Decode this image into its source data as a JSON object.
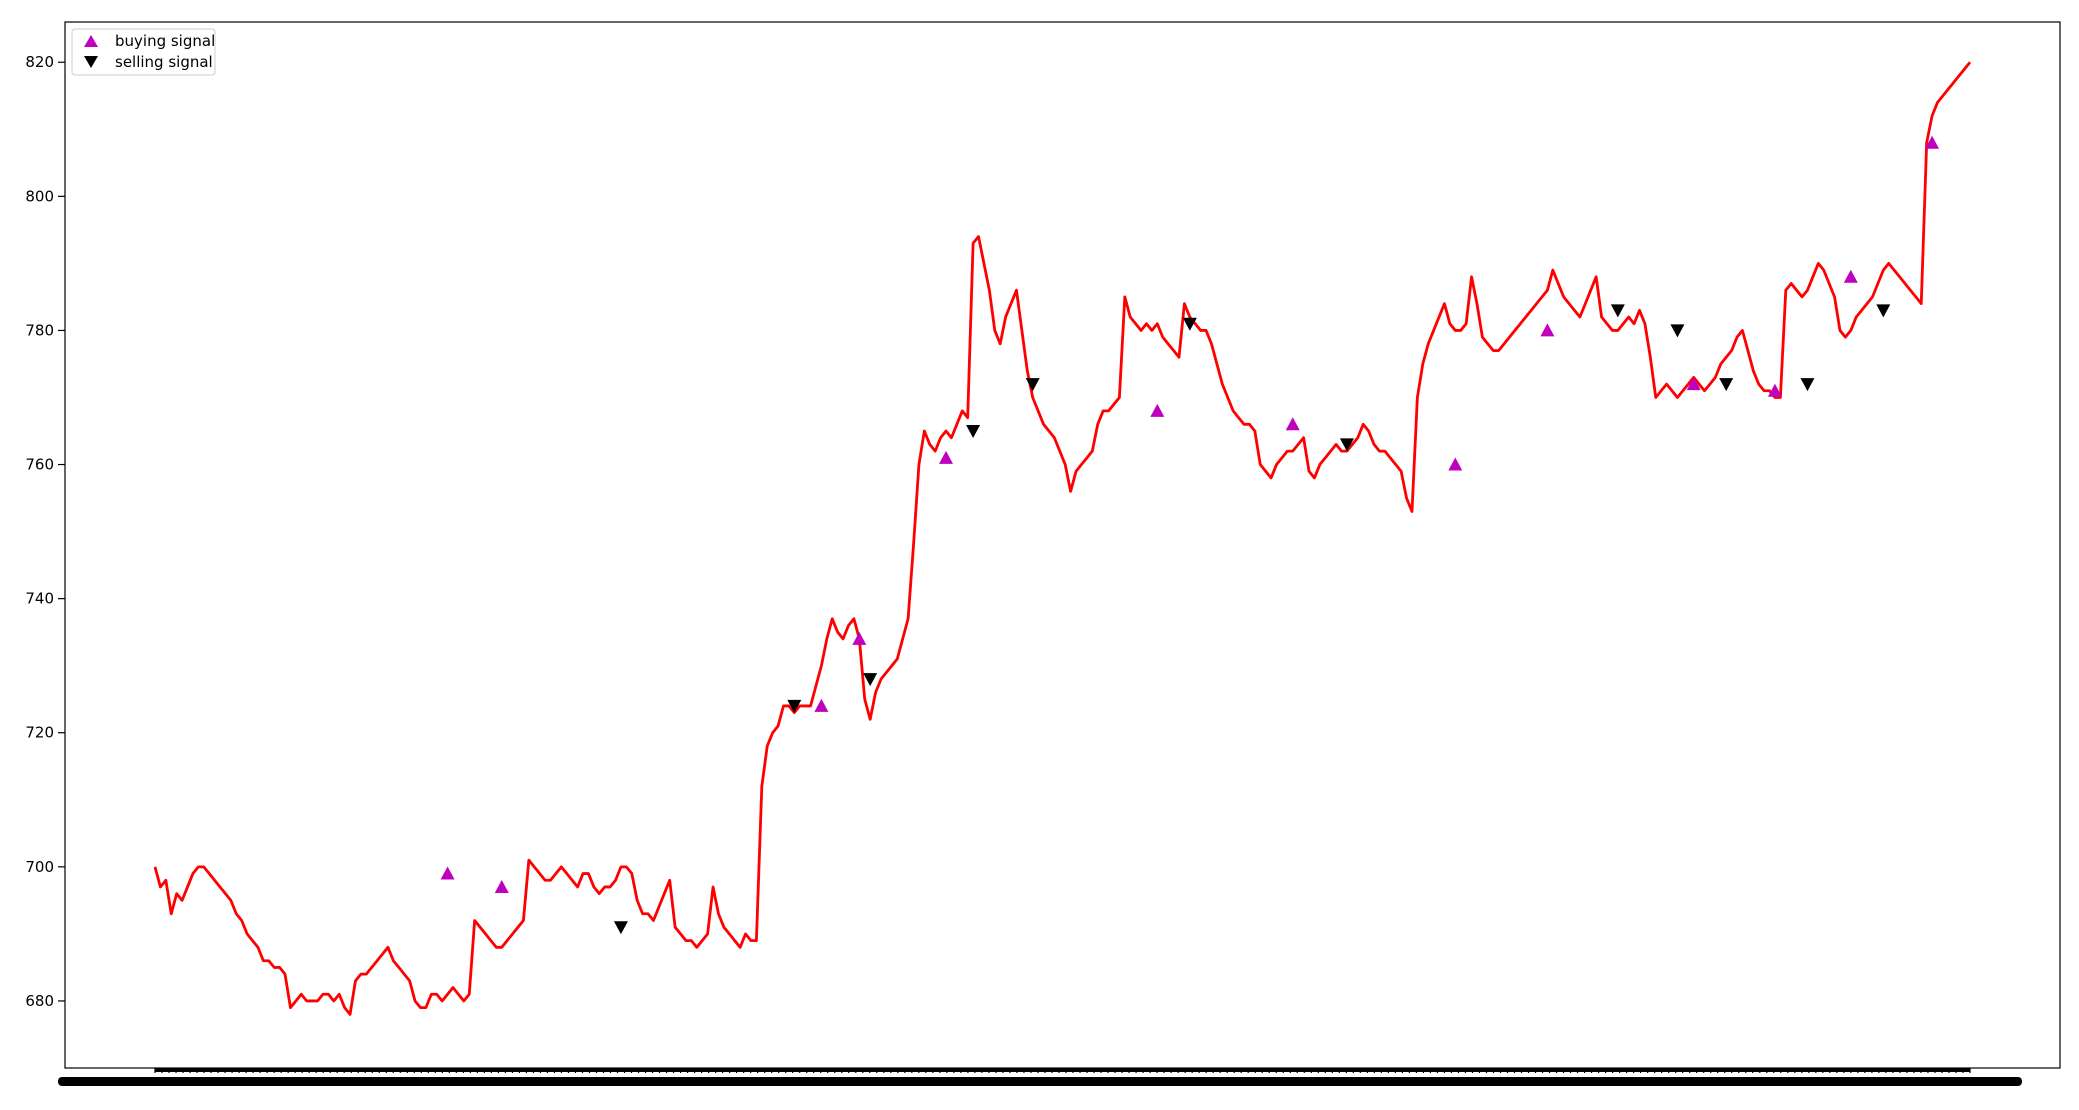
{
  "chart_data": {
    "type": "line",
    "title": "",
    "xlabel": "",
    "ylabel": "",
    "ylim": [
      670,
      826
    ],
    "y_ticks": [
      680,
      700,
      720,
      740,
      760,
      780,
      800,
      820
    ],
    "x_tick_labels_overlapping": true,
    "grid": false,
    "legend_position": "top-left",
    "colors": {
      "price": "#ff0000",
      "buy": "#bf00bf",
      "sell": "#000000"
    },
    "series": [
      {
        "type": "line",
        "values": [
          700,
          697,
          698,
          693,
          696,
          695,
          697,
          699,
          700,
          700,
          699,
          698,
          697,
          696,
          695,
          693,
          692,
          690,
          689,
          688,
          686,
          686,
          685,
          685,
          684,
          679,
          680,
          681,
          680,
          680,
          680,
          681,
          681,
          680,
          681,
          679,
          678,
          683,
          684,
          684,
          685,
          686,
          687,
          688,
          686,
          685,
          684,
          683,
          680,
          679,
          679,
          681,
          681,
          680,
          681,
          682,
          681,
          680,
          681,
          692,
          691,
          690,
          689,
          688,
          688,
          689,
          690,
          691,
          692,
          701,
          700,
          699,
          698,
          698,
          699,
          700,
          699,
          698,
          697,
          699,
          699,
          697,
          696,
          697,
          697,
          698,
          700,
          700,
          699,
          695,
          693,
          693,
          692,
          694,
          696,
          698,
          691,
          690,
          689,
          689,
          688,
          689,
          690,
          697,
          693,
          691,
          690,
          689,
          688,
          690,
          689,
          689,
          712,
          718,
          720,
          721,
          724,
          724,
          723,
          724,
          724,
          724,
          727,
          730,
          734,
          737,
          735,
          734,
          736,
          737,
          734,
          725,
          722,
          726,
          728,
          729,
          730,
          731,
          734,
          737,
          748,
          760,
          765,
          763,
          762,
          764,
          765,
          764,
          766,
          768,
          767,
          793,
          794,
          790,
          786,
          780,
          778,
          782,
          784,
          786,
          780,
          774,
          770,
          768,
          766,
          765,
          764,
          762,
          760,
          756,
          759,
          760,
          761,
          762,
          766,
          768,
          768,
          769,
          770,
          785,
          782,
          781,
          780,
          781,
          780,
          781,
          779,
          778,
          777,
          776,
          784,
          782,
          781,
          780,
          780,
          778,
          775,
          772,
          770,
          768,
          767,
          766,
          766,
          765,
          760,
          759,
          758,
          760,
          761,
          762,
          762,
          763,
          764,
          759,
          758,
          760,
          761,
          762,
          763,
          762,
          762,
          763,
          764,
          766,
          765,
          763,
          762,
          762,
          761,
          760,
          759,
          755,
          753,
          770,
          775,
          778,
          780,
          782,
          784,
          781,
          780,
          780,
          781,
          788,
          784,
          779,
          778,
          777,
          777,
          778,
          779,
          780,
          781,
          782,
          783,
          784,
          785,
          786,
          789,
          787,
          785,
          784,
          783,
          782,
          784,
          786,
          788,
          782,
          781,
          780,
          780,
          781,
          782,
          781,
          783,
          781,
          776,
          770,
          771,
          772,
          771,
          770,
          771,
          772,
          773,
          772,
          771,
          772,
          773,
          775,
          776,
          777,
          779,
          780,
          777,
          774,
          772,
          771,
          771,
          770,
          770,
          786,
          787,
          786,
          785,
          786,
          788,
          790,
          789,
          787,
          785,
          780,
          779,
          780,
          782,
          783,
          784,
          785,
          787,
          789,
          790,
          789,
          788,
          787,
          786,
          785,
          784,
          808,
          812,
          814,
          815,
          816,
          817,
          818,
          819,
          820
        ]
      },
      {
        "name": "buying signal",
        "type": "scatter",
        "marker": "triangle-up",
        "x": [
          54,
          64,
          123,
          130,
          146,
          185,
          210,
          240,
          257,
          284,
          299,
          313,
          328
        ],
        "values": [
          699,
          697,
          724,
          734,
          761,
          768,
          766,
          760,
          780,
          772,
          771,
          788,
          808
        ]
      },
      {
        "name": "selling signal",
        "type": "scatter",
        "marker": "triangle-down",
        "x": [
          86,
          118,
          132,
          151,
          162,
          191,
          220,
          270,
          281,
          290,
          305,
          319
        ],
        "values": [
          691,
          724,
          728,
          765,
          772,
          781,
          763,
          783,
          780,
          772,
          772,
          783
        ]
      }
    ]
  }
}
